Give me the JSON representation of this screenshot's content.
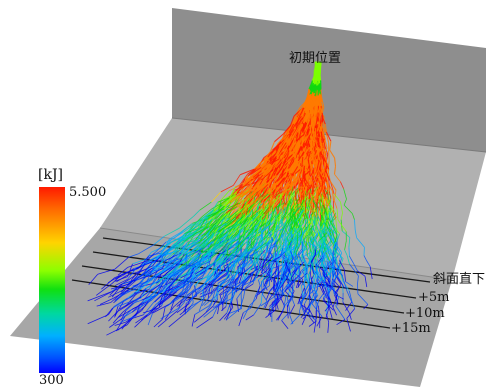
{
  "annotations": {
    "initial_position": "初期位置",
    "slope_base": "斜面直下",
    "plus_5m": "+5m",
    "plus_10m": "+10m",
    "plus_15m": "+15m"
  },
  "colorbar": {
    "unit": "[kJ]",
    "max_label": "5.500",
    "min_label": "300",
    "colors": [
      "#ff1a00",
      "#ffd400",
      "#10e010",
      "#00b0ff",
      "#0000ff"
    ]
  },
  "colors": {
    "wall": "#8f8f8f",
    "slope": "#b3b3b3",
    "floor": "#a6a6a6",
    "lines": "#1a1a1a"
  }
}
